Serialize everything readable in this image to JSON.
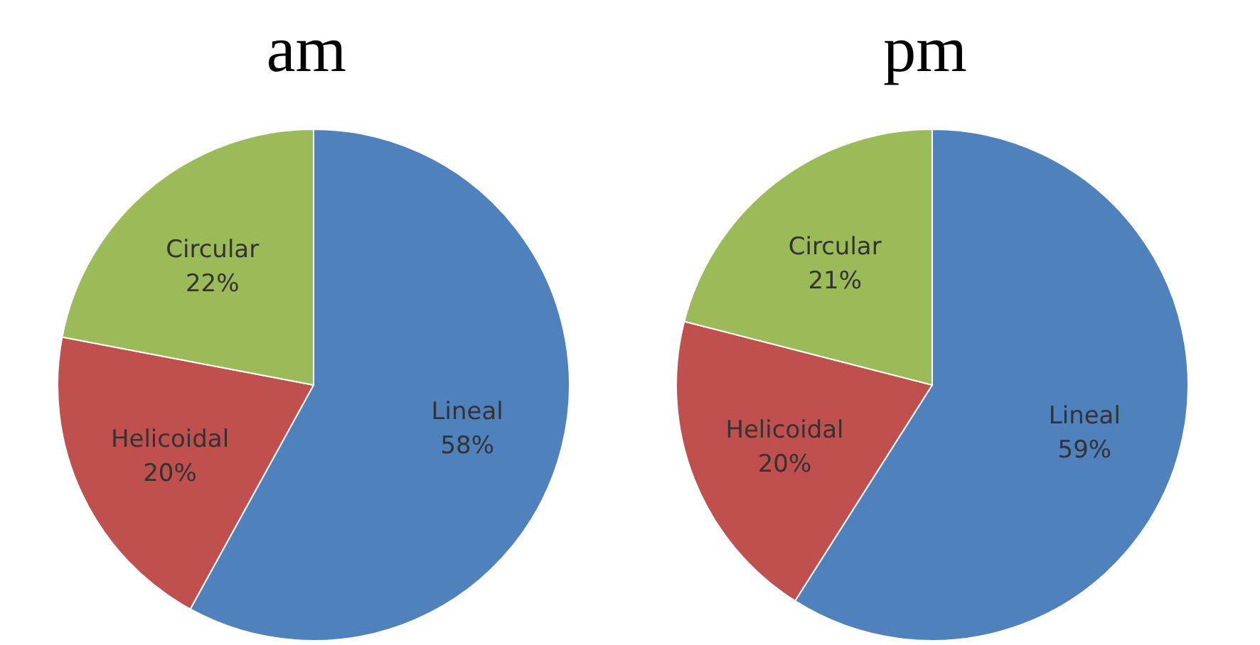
{
  "chart_data": [
    {
      "type": "pie",
      "title": "am",
      "categories": [
        "Lineal",
        "Helicoidal",
        "Circular"
      ],
      "values": [
        58,
        20,
        22
      ],
      "value_labels": [
        "58%",
        "20%",
        "22%"
      ],
      "colors": [
        "#4f81bd",
        "#c0504d",
        "#9bbb59"
      ],
      "legend": false
    },
    {
      "type": "pie",
      "title": "pm",
      "categories": [
        "Lineal",
        "Helicoidal",
        "Circular"
      ],
      "values": [
        59,
        20,
        21
      ],
      "value_labels": [
        "59%",
        "20%",
        "21%"
      ],
      "colors": [
        "#4f81bd",
        "#c0504d",
        "#9bbb59"
      ],
      "legend": false
    }
  ]
}
